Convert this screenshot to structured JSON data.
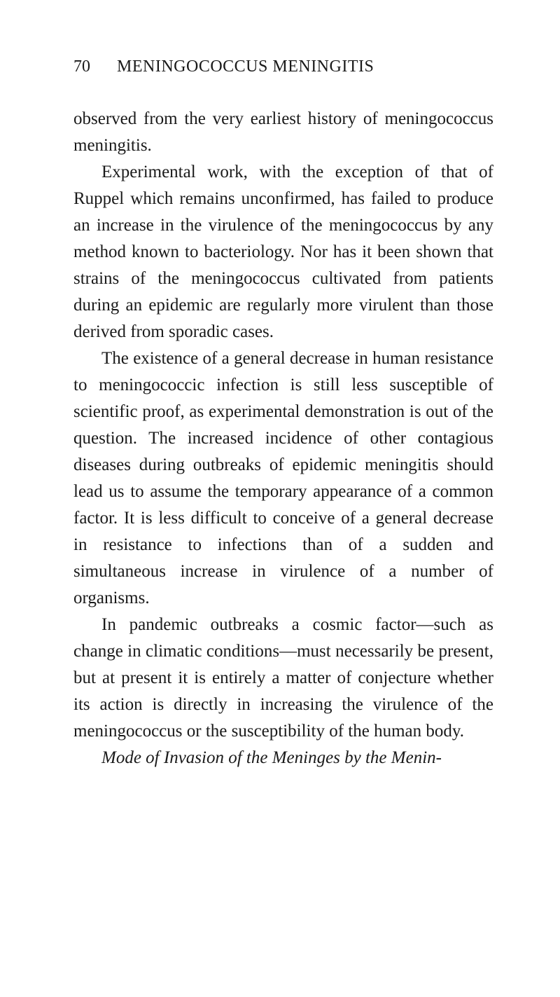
{
  "page_number": "70",
  "running_title": "MENINGOCOCCUS MENINGITIS",
  "paragraphs": {
    "p1": "observed from the very earliest history of meningo­coccus meningitis.",
    "p2": "Experimental work, with the exception of that of Ruppel which remains unconfirmed, has failed to produce an increase in the virulence of the meningo­coccus by any method known to bacteriology. Nor has it been shown that strains of the meningococcus cultivated from patients during an epidemic are regu­larly more virulent than those derived from sporadic cases.",
    "p3": "The existence of a general decrease in human resistance to meningococcic infection is still less sus­ceptible of scientific proof, as experimental demon­stration is out of the question. The increased inci­dence of other contagious diseases during outbreaks of epidemic meningitis should lead us to assume the temporary appearance of a common factor. It is less difficult to conceive of a general decrease in resistance to infections than of a sudden and simultaneous in­crease in virulence of a number of organisms.",
    "p4": "In pandemic outbreaks a cosmic factor—such as change in climatic conditions—must necessarily be present, but at present it is entirely a matter of con­jecture whether its action is directly in increasing the virulence of the meningococcus or the susceptibility of the human body.",
    "p5_italic": "Mode of Invasion of the Meninges by the Menin-"
  },
  "colors": {
    "background": "#ffffff",
    "text": "#1a1a1a"
  },
  "typography": {
    "body_fontsize": 25,
    "header_fontsize": 24,
    "line_height": 1.52,
    "font_family": "Georgia, Times New Roman, serif"
  }
}
